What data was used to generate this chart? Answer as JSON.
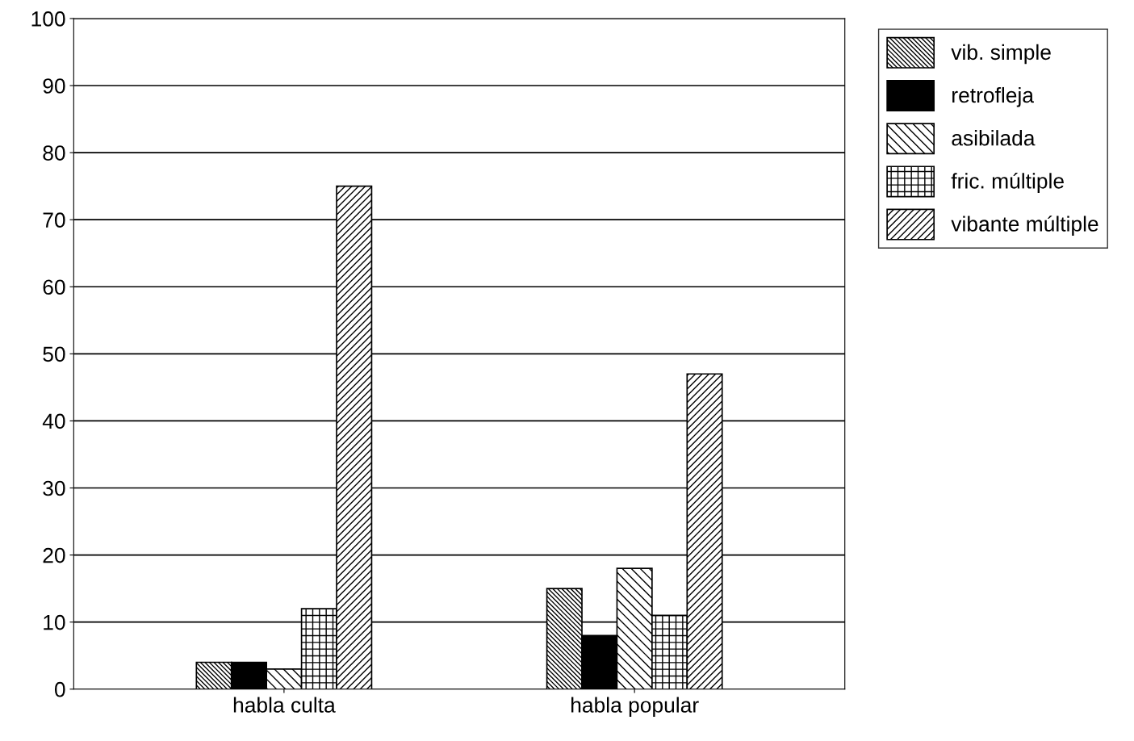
{
  "chart_data": {
    "type": "bar",
    "categories": [
      "habla culta",
      "habla popular"
    ],
    "series": [
      {
        "name": "vib. simple",
        "color": "#000000",
        "values": [
          4,
          15
        ]
      },
      {
        "name": "retrofleja",
        "color": "#000000",
        "values": [
          4,
          8
        ]
      },
      {
        "name": "asibilada",
        "color": "#000000",
        "values": [
          3,
          18
        ]
      },
      {
        "name": "fric. múltiple",
        "color": "#000000",
        "values": [
          12,
          11
        ]
      },
      {
        "name": "vibante múltiple",
        "color": "#000000",
        "values": [
          75,
          47
        ]
      }
    ],
    "ylim": [
      0,
      100
    ],
    "yticks": [
      0,
      10,
      20,
      30,
      40,
      50,
      60,
      70,
      80,
      90,
      100
    ],
    "grid": "y",
    "legend": "right"
  }
}
